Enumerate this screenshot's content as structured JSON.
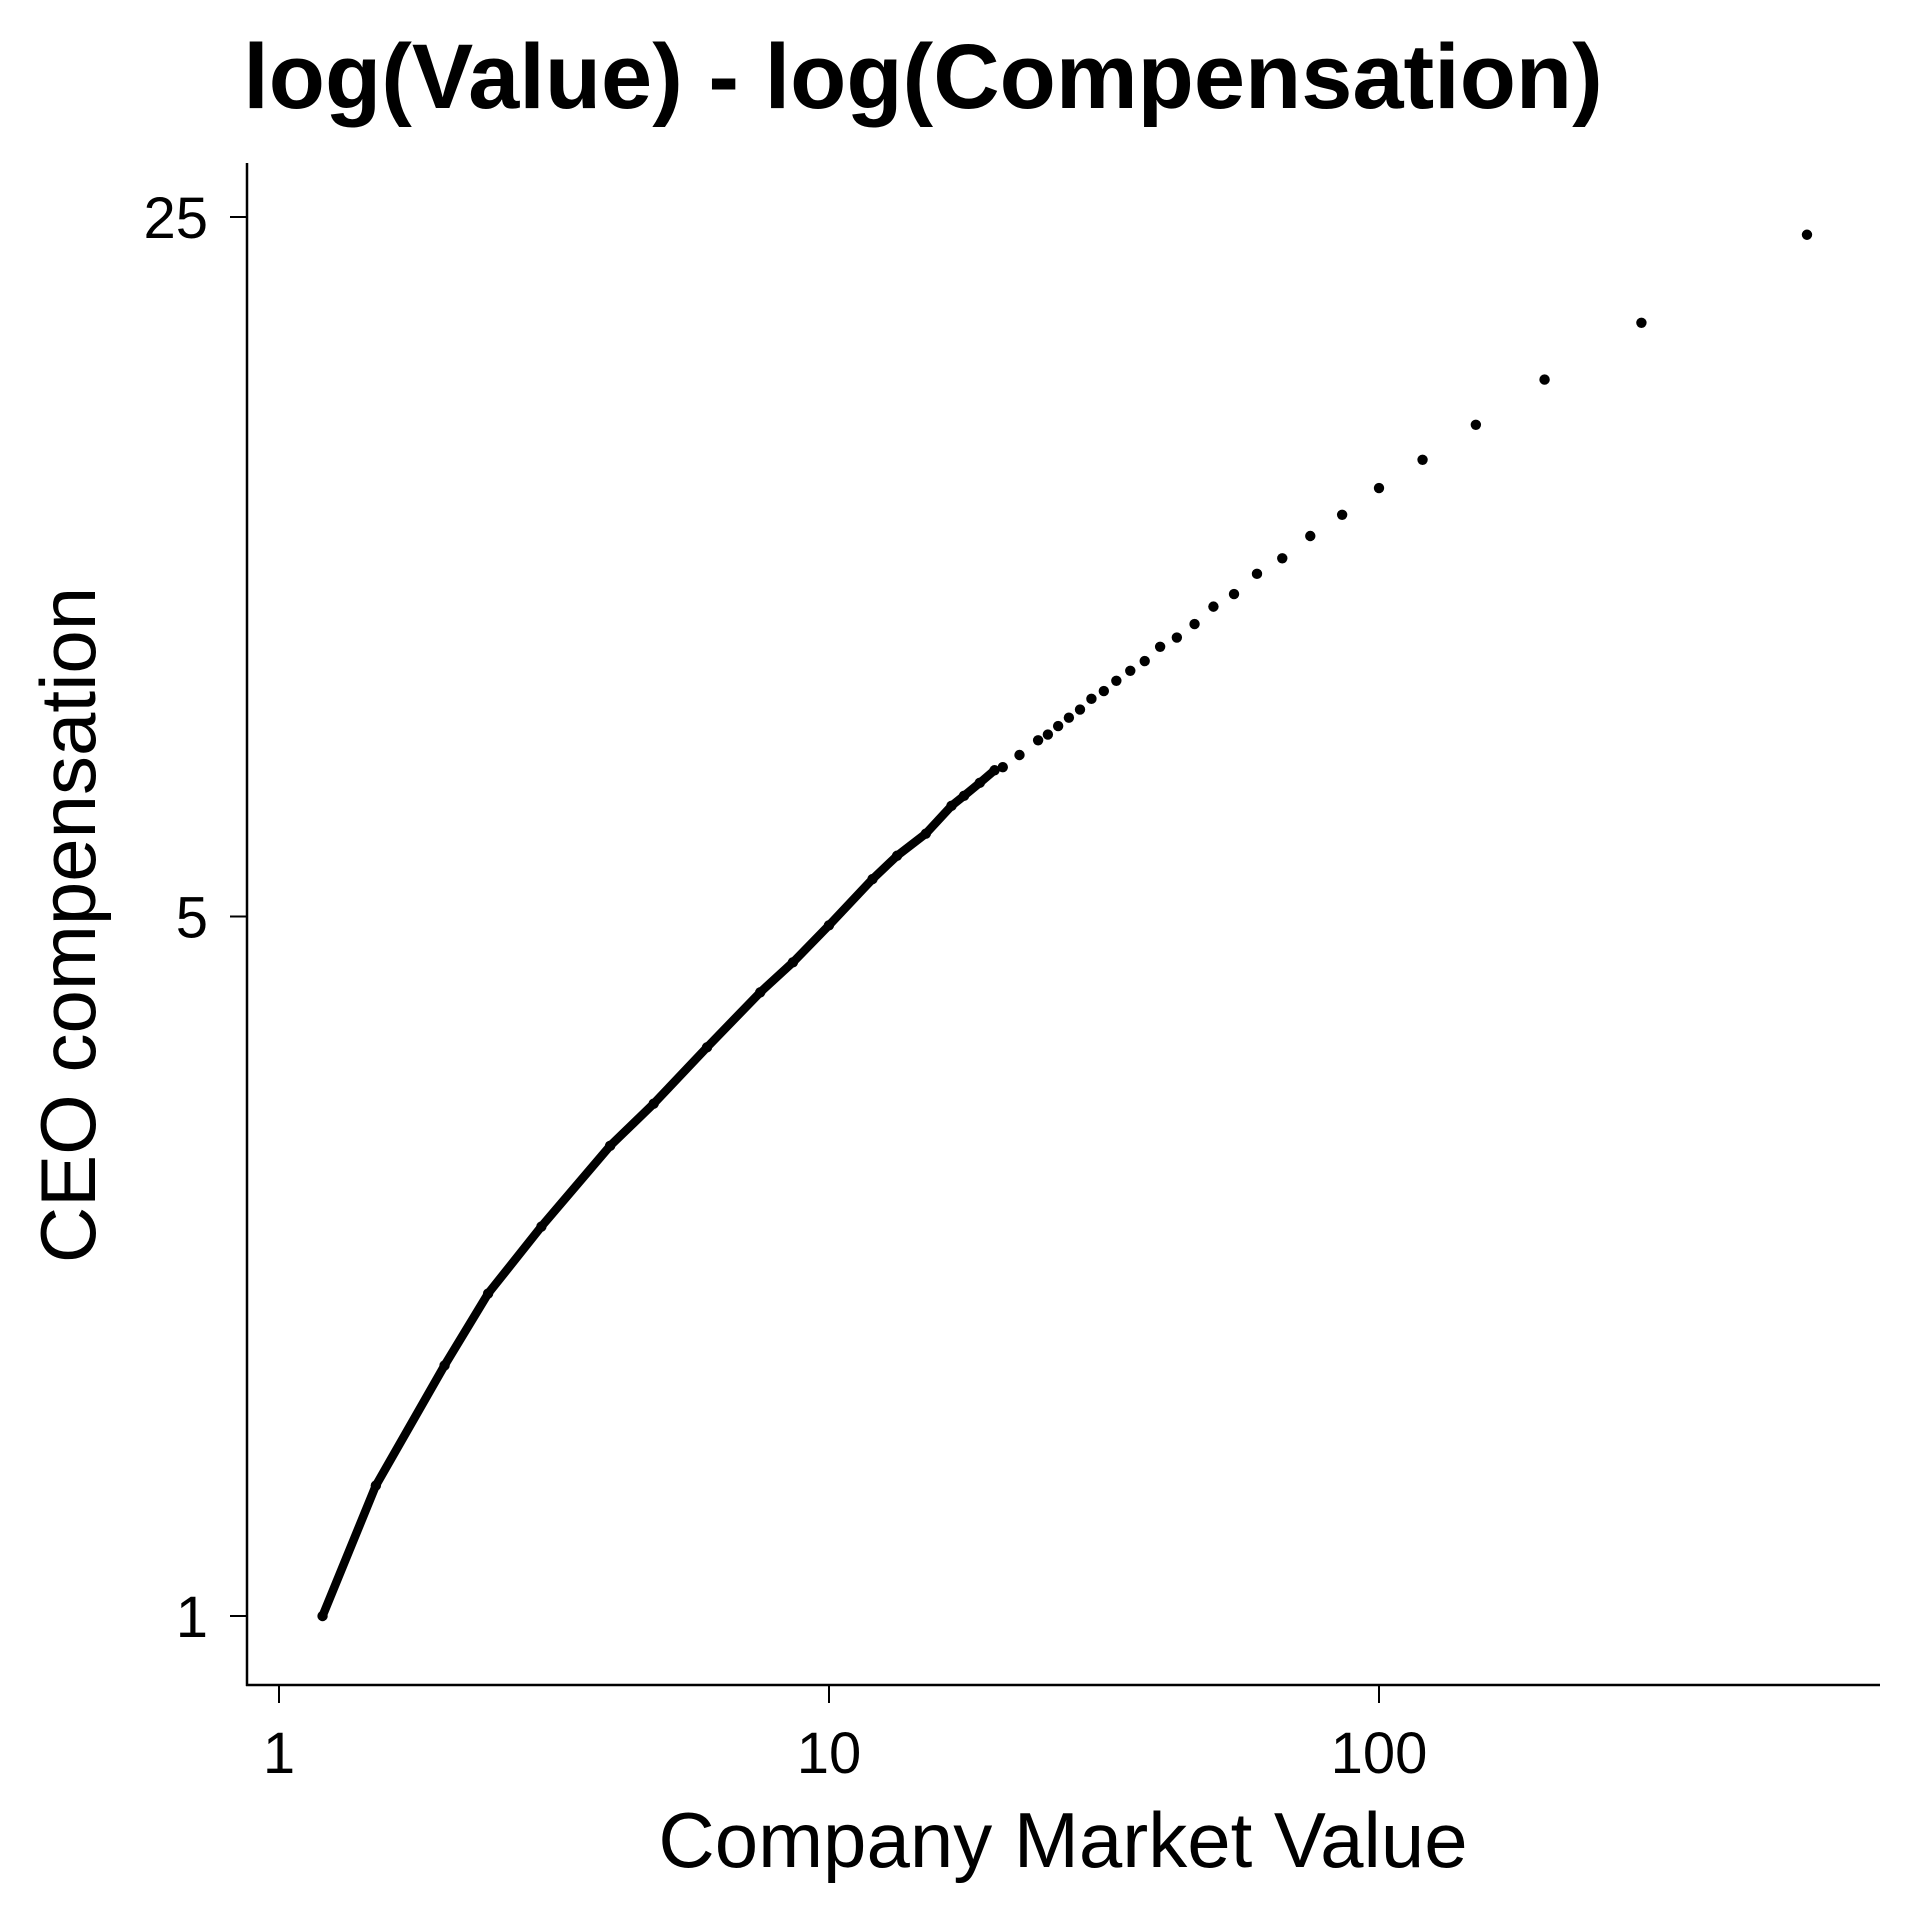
{
  "chart_data": {
    "type": "scatter",
    "title": "log(Value) - log(Compensation)",
    "xlabel": "Company Market Value",
    "ylabel": "CEO compensation",
    "x_scale": "log",
    "y_scale": "log",
    "xlim": [
      0.88,
      1000
    ],
    "ylim": [
      0.78,
      30
    ],
    "x_ticks": [
      {
        "value": 1,
        "label": "1"
      },
      {
        "value": 10,
        "label": "10"
      },
      {
        "value": 100,
        "label": "100"
      }
    ],
    "y_ticks": [
      {
        "value": 1,
        "label": "1"
      },
      {
        "value": 5,
        "label": "5"
      },
      {
        "value": 25,
        "label": "25"
      }
    ],
    "grid": false,
    "color": "#000000",
    "points": [
      [
        600,
        24.0
      ],
      [
        300,
        19.6
      ],
      [
        200,
        17.2
      ],
      [
        150,
        15.5
      ],
      [
        120,
        14.3
      ],
      [
        100,
        13.4
      ],
      [
        85.7,
        12.6
      ],
      [
        75,
        12.0
      ],
      [
        66.7,
        11.4
      ],
      [
        60,
        11.0
      ],
      [
        54.5,
        10.5
      ],
      [
        50,
        10.2
      ],
      [
        46.2,
        9.8
      ],
      [
        42.9,
        9.5
      ],
      [
        40,
        9.3
      ],
      [
        37.5,
        9.0
      ],
      [
        35.3,
        8.8
      ],
      [
        33.3,
        8.6
      ],
      [
        31.6,
        8.4
      ],
      [
        30,
        8.25
      ],
      [
        28.6,
        8.05
      ],
      [
        27.3,
        7.9
      ],
      [
        26.1,
        7.75
      ],
      [
        25,
        7.6
      ],
      [
        24,
        7.5
      ],
      [
        22.2,
        7.25
      ],
      [
        20.7,
        7.05
      ],
      [
        20,
        7.0
      ],
      [
        18.8,
        6.8
      ],
      [
        17.6,
        6.6
      ],
      [
        16.7,
        6.45
      ],
      [
        15,
        6.05
      ],
      [
        13.3,
        5.75
      ],
      [
        12,
        5.45
      ],
      [
        10,
        4.9
      ],
      [
        8.6,
        4.5
      ],
      [
        7.5,
        4.2
      ],
      [
        6,
        3.7
      ],
      [
        4.8,
        3.25
      ],
      [
        4,
        2.95
      ],
      [
        3,
        2.45
      ],
      [
        2.4,
        2.1
      ],
      [
        2,
        1.78
      ],
      [
        1.5,
        1.35
      ],
      [
        1.2,
        1.0
      ]
    ]
  }
}
